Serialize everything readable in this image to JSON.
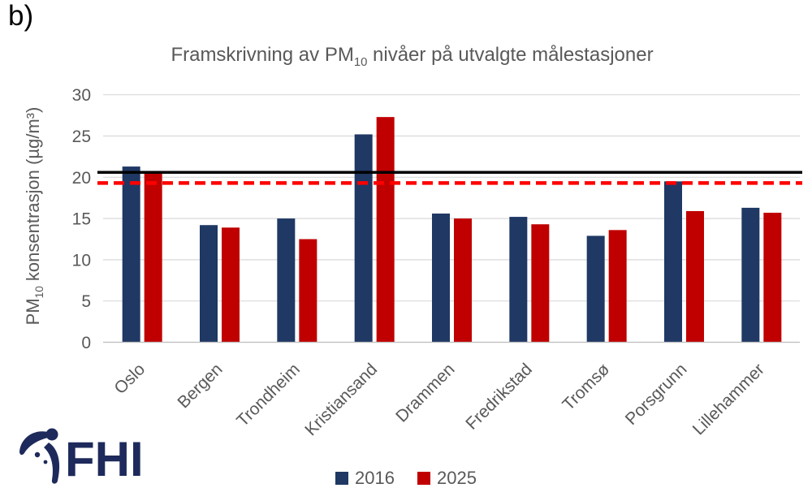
{
  "panel_label": "b)",
  "chart_data": {
    "type": "bar",
    "title_parts": {
      "prefix": "Framskrivning av PM",
      "subscript": "10",
      "suffix": " nivåer på utvalgte målestasjoner"
    },
    "ylabel_parts": {
      "prefix": "PM",
      "subscript": "10",
      "suffix": " konsentrasjon (µg/m³)"
    },
    "categories": [
      "Oslo",
      "Bergen",
      "Trondheim",
      "Kristiansand",
      "Drammen",
      "Fredrikstad",
      "Tromsø",
      "Porsgrunn",
      "Lillehammer"
    ],
    "series": [
      {
        "name": "2016",
        "color": "#1F3864",
        "values": [
          21.3,
          14.2,
          15.0,
          25.2,
          15.6,
          15.2,
          12.9,
          19.5,
          16.3
        ]
      },
      {
        "name": "2025",
        "color": "#C00000",
        "values": [
          20.7,
          13.9,
          12.5,
          27.3,
          15.0,
          14.3,
          13.6,
          15.9,
          15.7
        ]
      }
    ],
    "ylim": [
      0,
      30
    ],
    "yticks": [
      0,
      5,
      10,
      15,
      20,
      25,
      30
    ],
    "grid": true,
    "legend_position": "bottom",
    "reference_lines": [
      {
        "value": 20.6,
        "color": "#000000",
        "style": "solid"
      },
      {
        "value": 19.3,
        "color": "#FF0000",
        "style": "dashed"
      }
    ],
    "colors": {
      "gridline": "#D9D9D9",
      "axis_line": "#BFBFBF",
      "tick_text": "#595959",
      "title_text": "#595959"
    }
  },
  "logo": {
    "text": "FHI",
    "color": "#1E2A5B"
  }
}
